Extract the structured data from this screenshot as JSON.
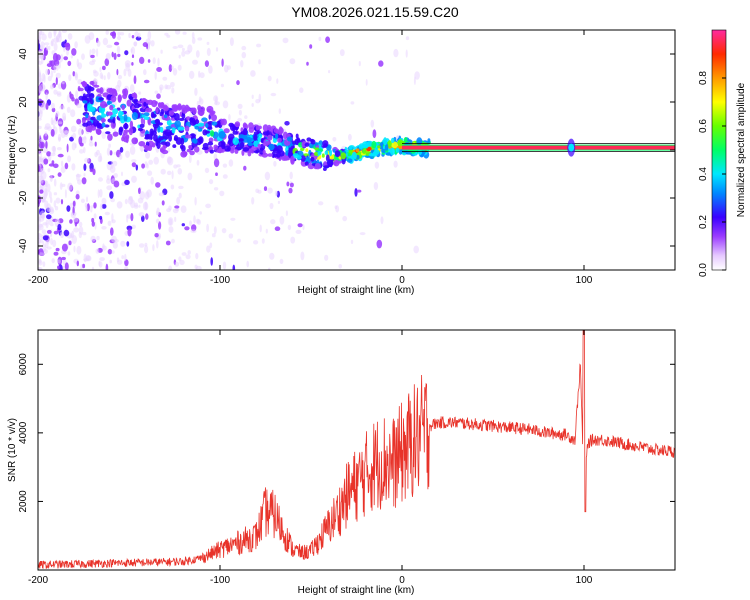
{
  "title": "YM08.2026.021.15.59.C20",
  "colors": {
    "snr_line": "#e8332a",
    "ridge": "#ff2a55",
    "frame": "#000000"
  },
  "chart_data": [
    {
      "type": "heatmap",
      "title": "YM08.2026.021.15.59.C20",
      "xlabel": "Height of straight line (km)",
      "ylabel": "Frequency (Hz)",
      "xlim": [
        -200,
        150
      ],
      "ylim": [
        -50,
        50
      ],
      "xticks": [
        -200,
        -100,
        0,
        100
      ],
      "yticks": [
        -40,
        -20,
        0,
        20,
        40
      ],
      "colorbar": {
        "label": "Normalized spectral amplitude",
        "range": [
          0,
          1
        ],
        "ticks": [
          "0.0",
          "0.2",
          "0.4",
          "0.6",
          "0.8"
        ],
        "tick_values": [
          0.0,
          0.2,
          0.4,
          0.6,
          0.8
        ]
      },
      "ridge": {
        "x": [
          -170,
          -160,
          -150,
          -140,
          -130,
          -120,
          -110,
          -100,
          -90,
          -80,
          -70,
          -60,
          -50,
          -40,
          -30,
          -20,
          -10,
          0,
          10,
          50,
          90,
          100,
          150
        ],
        "freq": [
          18,
          15,
          14,
          11,
          9,
          8,
          8,
          6,
          5,
          4,
          3,
          1,
          -1,
          -3,
          -2,
          0,
          1,
          2,
          1,
          1,
          1,
          1,
          1
        ]
      }
    },
    {
      "type": "line",
      "xlabel": "Height of straight line (km)",
      "ylabel": "SNR (10 * v/v)",
      "xlim": [
        -200,
        150
      ],
      "ylim": [
        0,
        7000
      ],
      "xticks": [
        -200,
        -100,
        0,
        100
      ],
      "yticks": [
        2000,
        4000,
        6000
      ],
      "series": [
        {
          "name": "SNR",
          "x": [
            -200,
            -180,
            -160,
            -140,
            -120,
            -110,
            -100,
            -90,
            -80,
            -75,
            -70,
            -65,
            -60,
            -55,
            -50,
            -45,
            -40,
            -35,
            -30,
            -25,
            -20,
            -15,
            -10,
            -5,
            0,
            5,
            10,
            15,
            20,
            30,
            40,
            50,
            60,
            70,
            80,
            90,
            95,
            98,
            100,
            102,
            105,
            110,
            120,
            130,
            140,
            150
          ],
          "y": [
            150,
            170,
            200,
            220,
            250,
            350,
            600,
            800,
            1000,
            1700,
            1600,
            1100,
            600,
            500,
            550,
            900,
            1300,
            1700,
            2200,
            2500,
            2800,
            3100,
            3200,
            3100,
            3400,
            3700,
            3900,
            4200,
            4300,
            4300,
            4250,
            4200,
            4150,
            4100,
            4000,
            3950,
            3800,
            6000,
            2300,
            3700,
            3800,
            3800,
            3700,
            3600,
            3500,
            3450
          ]
        }
      ]
    }
  ]
}
